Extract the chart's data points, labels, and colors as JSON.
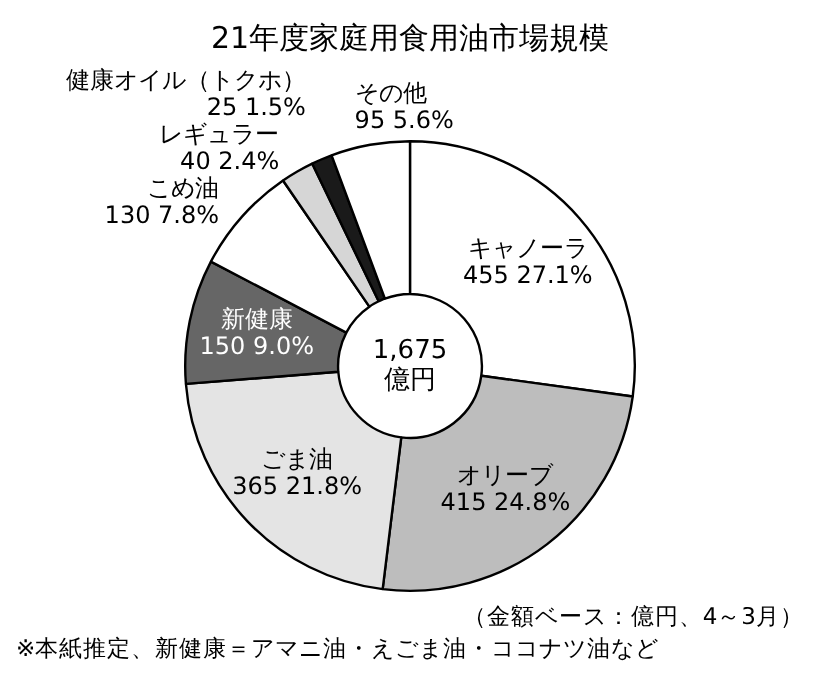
{
  "chart_data": {
    "type": "donut",
    "title": "21年度家庭用食用油市場規模",
    "categories": [
      "キャノーラ",
      "オリーブ",
      "ごま油",
      "新健康",
      "こめ油",
      "レギュラー",
      "健康オイル（トクホ）",
      "その他"
    ],
    "values": [
      455,
      415,
      365,
      150,
      130,
      40,
      25,
      95
    ],
    "colors": [
      "#ffffff",
      "#bdbdbd",
      "#e4e4e4",
      "#666666",
      "#ffffff",
      "#d6d6d6",
      "#1a1a1a",
      "#ffffff"
    ],
    "value_labels": [
      "455 27.1%",
      "415 24.8%",
      "365 21.8%",
      "150 9.0%",
      "130 7.8%",
      "40 2.4%",
      "25 1.5%",
      "95 5.6%"
    ],
    "annotations": [
      "1,675 億円",
      "（金額ベース：億円、4～3月）",
      "※本紙推定、新健康＝アマニ油・えごま油・ココナツ油など"
    ]
  }
}
